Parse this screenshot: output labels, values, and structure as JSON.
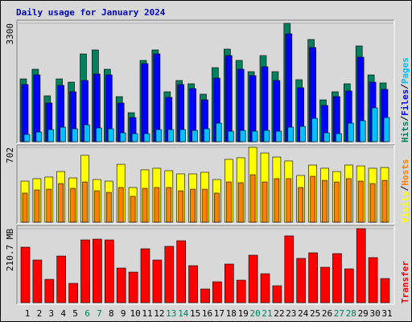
{
  "chart_data": [
    {
      "type": "bar",
      "title": "Daily usage for January 2024",
      "ylim": [
        0,
        3300
      ],
      "yticks": [
        3300
      ],
      "series": [
        {
          "name": "Hits",
          "color": "#00805c",
          "values": [
            1751,
            2020,
            1280,
            1751,
            1661,
            2447,
            2559,
            2020,
            1257,
            808,
            2267,
            2559,
            1392,
            1706,
            1616,
            1325,
            2065,
            2582,
            2267,
            1953,
            2402,
            1953,
            3300,
            1729,
            2851,
            1167,
            1392,
            1616,
            2671,
            1863,
            1639
          ]
        },
        {
          "name": "Files",
          "color": "#0000ff",
          "values": [
            1594,
            1863,
            1078,
            1571,
            1392,
            1706,
            1886,
            1863,
            1078,
            673,
            2178,
            2447,
            1235,
            1594,
            1482,
            1167,
            1773,
            2402,
            2020,
            1841,
            2088,
            1706,
            3008,
            1504,
            2627,
            1010,
            1257,
            1414,
            2357,
            1661,
            1459
          ]
        },
        {
          "name": "Pages",
          "color": "#00c0ff",
          "values": [
            202,
            269,
            337,
            404,
            359,
            471,
            382,
            359,
            247,
            224,
            224,
            337,
            337,
            337,
            314,
            359,
            516,
            292,
            314,
            292,
            314,
            292,
            404,
            427,
            651,
            247,
            224,
            516,
            584,
            943,
            673
          ]
        }
      ]
    },
    {
      "type": "bar",
      "ylim": [
        0,
        702
      ],
      "yticks": [
        702
      ],
      "series": [
        {
          "name": "Visits",
          "color": "#ffff00",
          "values": [
            385,
            408,
            423,
            475,
            415,
            627,
            400,
            385,
            543,
            325,
            491,
            506,
            483,
            453,
            453,
            468,
            400,
            589,
            604,
            702,
            649,
            611,
            574,
            438,
            536,
            506,
            475,
            536,
            528,
            506,
            513
          ]
        },
        {
          "name": "Hosts",
          "color": "#ff8000",
          "values": [
            272,
            302,
            309,
            362,
            317,
            377,
            294,
            279,
            325,
            242,
            317,
            325,
            325,
            294,
            309,
            309,
            272,
            377,
            370,
            445,
            377,
            408,
            408,
            325,
            430,
            392,
            377,
            408,
            385,
            362,
            392
          ]
        }
      ]
    },
    {
      "type": "bar",
      "ylim": [
        0,
        210.7
      ],
      "yticks": [
        {
          "value": 210.7,
          "label": "210.7 MB"
        }
      ],
      "series": [
        {
          "name": "Transfer",
          "color": "#ff0000",
          "values": [
            158.0,
            121.4,
            66.4,
            132.8,
            55.0,
            178.6,
            180.9,
            178.6,
            98.5,
            87.0,
            153.4,
            121.4,
            160.3,
            176.3,
            105.3,
            38.9,
            59.5,
            109.9,
            64.1,
            135.1,
            82.4,
            48.1,
            190.1,
            126.0,
            142.0,
            100.8,
            139.7,
            96.2,
            210.7,
            128.3,
            68.7
          ]
        }
      ],
      "categories": [
        "1",
        "2",
        "3",
        "4",
        "5",
        "6",
        "7",
        "8",
        "9",
        "10",
        "11",
        "12",
        "13",
        "14",
        "15",
        "16",
        "17",
        "18",
        "19",
        "20",
        "21",
        "22",
        "23",
        "24",
        "25",
        "26",
        "27",
        "28",
        "29",
        "30",
        "31"
      ],
      "category_label_colors": [
        "#000000",
        "#000000",
        "#000000",
        "#000000",
        "#000000",
        "#00805c",
        "#00805c",
        "#000000",
        "#000000",
        "#000000",
        "#000000",
        "#000000",
        "#00805c",
        "#00805c",
        "#000000",
        "#000000",
        "#000000",
        "#000000",
        "#000000",
        "#00805c",
        "#00805c",
        "#000000",
        "#000000",
        "#000000",
        "#000000",
        "#000000",
        "#00805c",
        "#00805c",
        "#000000",
        "#000000",
        "#000000"
      ]
    }
  ]
}
